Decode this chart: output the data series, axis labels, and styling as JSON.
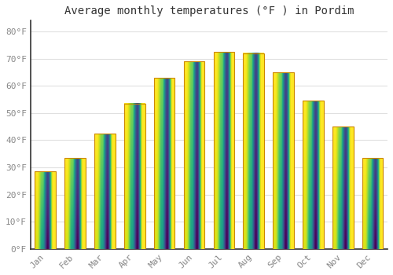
{
  "title": "Average monthly temperatures (°F ) in Pordim",
  "months": [
    "Jan",
    "Feb",
    "Mar",
    "Apr",
    "May",
    "Jun",
    "Jul",
    "Aug",
    "Sep",
    "Oct",
    "Nov",
    "Dec"
  ],
  "values": [
    28.5,
    33.5,
    42.5,
    53.5,
    63,
    69,
    72.5,
    72,
    65,
    54.5,
    45,
    33.5
  ],
  "bar_color_mid": "#FFA500",
  "bar_color_top": "#FFD050",
  "bar_edge_color": "#CC8800",
  "background_color": "#ffffff",
  "grid_color": "#e0e0e0",
  "ytick_labels": [
    "0°F",
    "10°F",
    "20°F",
    "30°F",
    "40°F",
    "50°F",
    "60°F",
    "70°F",
    "80°F"
  ],
  "ytick_values": [
    0,
    10,
    20,
    30,
    40,
    50,
    60,
    70,
    80
  ],
  "ylim": [
    0,
    84
  ],
  "title_fontsize": 10,
  "tick_fontsize": 8,
  "tick_color": "#888888"
}
